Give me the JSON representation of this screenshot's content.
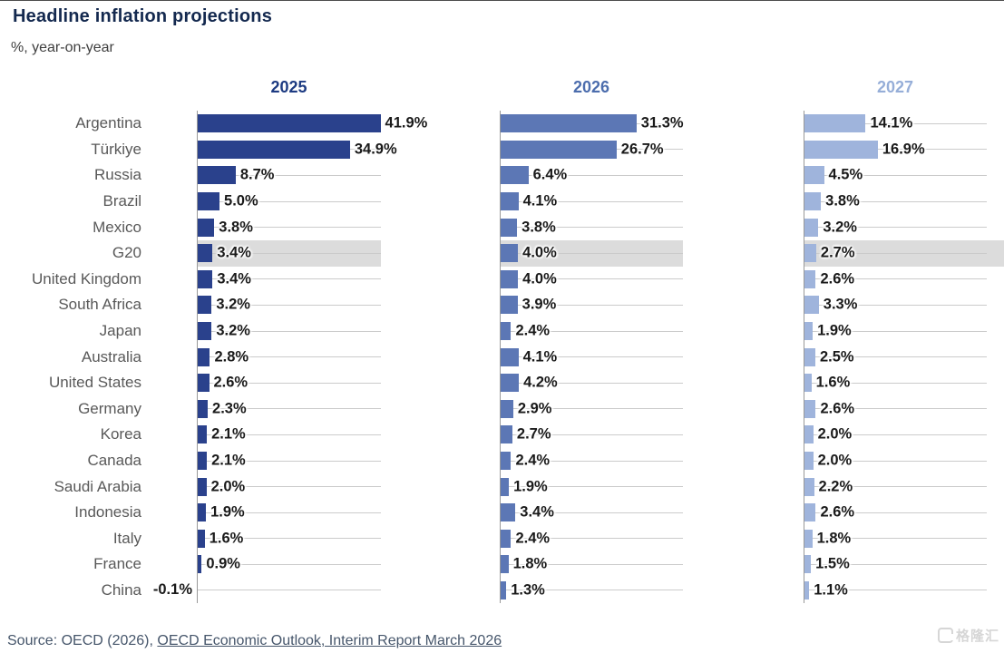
{
  "header": {
    "title": "Headline inflation projections",
    "subtitle": "%, year-on-year"
  },
  "source": {
    "prefix": "Source: OECD (2026), ",
    "link": "OECD Economic Outlook, Interim Report March 2026"
  },
  "watermark": {
    "text": "格隆汇"
  },
  "colors": {
    "bar_2025": "#2a418c",
    "bar_2026": "#5c77b5",
    "bar_2027": "#9fb4dc",
    "header_2025": "#1d3b82",
    "header_2026": "#4c6dad",
    "header_2027": "#96aed8",
    "highlight_band": "#dcdcdc",
    "gridline": "#cbcbcb",
    "axis": "#989898",
    "value_label": "#1a1a1a",
    "country_label": "#595959"
  },
  "chart_data": {
    "type": "bar",
    "orientation": "horizontal",
    "title": "Headline inflation projections",
    "ylabel": "%, year-on-year",
    "grid": true,
    "axis_max": 42,
    "value_suffix": "%",
    "highlight_category": "G20",
    "categories": [
      "Argentina",
      "Türkiye",
      "Russia",
      "Brazil",
      "Mexico",
      "G20",
      "United Kingdom",
      "South Africa",
      "Japan",
      "Australia",
      "United States",
      "Germany",
      "Korea",
      "Canada",
      "Saudi Arabia",
      "Indonesia",
      "Italy",
      "France",
      "China"
    ],
    "series": [
      {
        "name": "2025",
        "color": "#2a418c",
        "values": [
          41.9,
          34.9,
          8.7,
          5.0,
          3.8,
          3.4,
          3.4,
          3.2,
          3.2,
          2.8,
          2.6,
          2.3,
          2.1,
          2.1,
          2.0,
          1.9,
          1.6,
          0.9,
          -0.1
        ]
      },
      {
        "name": "2026",
        "color": "#5c77b5",
        "values": [
          31.3,
          26.7,
          6.4,
          4.1,
          3.8,
          4.0,
          4.0,
          3.9,
          2.4,
          4.1,
          4.2,
          2.9,
          2.7,
          2.4,
          1.9,
          3.4,
          2.4,
          1.8,
          1.3
        ]
      },
      {
        "name": "2027",
        "color": "#9fb4dc",
        "values": [
          14.1,
          16.9,
          4.5,
          3.8,
          3.2,
          2.7,
          2.6,
          3.3,
          1.9,
          2.5,
          1.6,
          2.6,
          2.0,
          2.0,
          2.2,
          2.6,
          1.8,
          1.5,
          1.1
        ]
      }
    ]
  }
}
